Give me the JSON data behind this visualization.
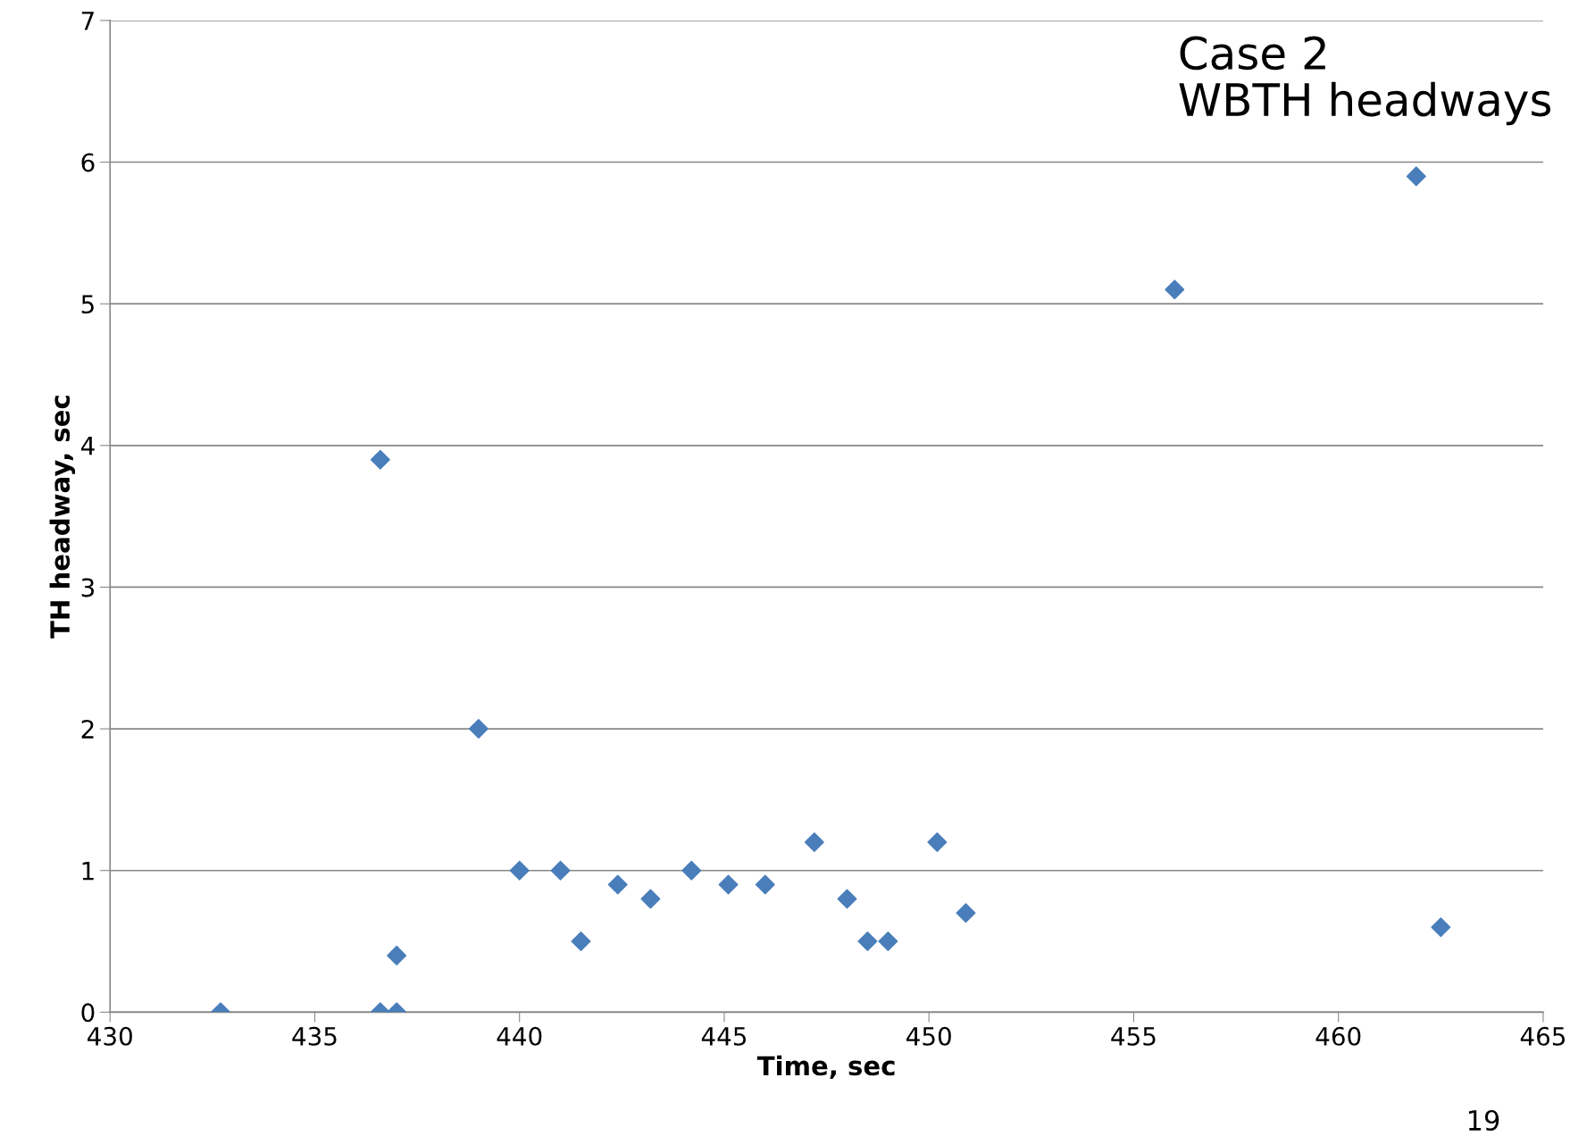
{
  "chart_data": {
    "type": "scatter",
    "xlabel": "Time, sec",
    "ylabel": "TH headway, sec",
    "annotations": [
      "Case 2\nWBTH headways",
      "19"
    ],
    "series": [
      {
        "color": "#4a7ebb",
        "x": [
          432.7,
          436.6,
          436.6,
          437.0,
          437.0,
          439.0,
          440.0,
          441.0,
          441.5,
          442.4,
          443.2,
          444.2,
          445.1,
          446.0,
          447.2,
          448.0,
          448.5,
          449.0,
          450.2,
          450.9,
          456.0,
          461.9,
          462.5
        ],
        "values": [
          0,
          3.9,
          0,
          0.4,
          0,
          2.0,
          1.0,
          1.0,
          0.5,
          0.9,
          0.8,
          1.0,
          0.9,
          0.9,
          1.2,
          0.8,
          0.5,
          0.5,
          1.2,
          0.7,
          5.1,
          5.9,
          0.6
        ]
      }
    ],
    "xlim": [
      430,
      465
    ],
    "xticks": [
      430,
      435,
      440,
      445,
      450,
      455,
      460,
      465
    ],
    "ylim": [
      0,
      7
    ],
    "yticks": [
      0,
      1,
      2,
      3,
      4,
      5,
      6,
      7
    ],
    "grid": "y",
    "marker": "diamond",
    "legend": false
  }
}
